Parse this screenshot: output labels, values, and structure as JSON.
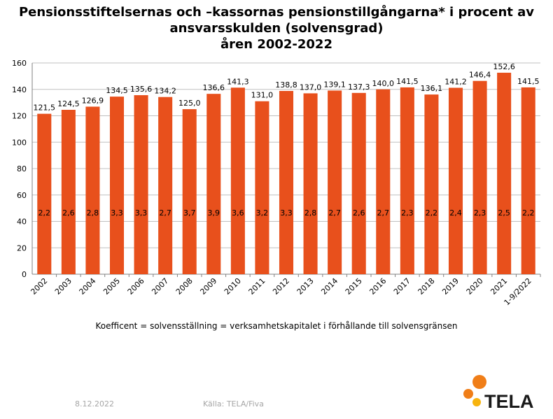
{
  "title_lines": [
    "Pensionsstiftelsernas och –kassornas pensionstillgångarna* i procent av",
    "ansvarsskulden (solvensgrad)",
    "åren 2002-2022"
  ],
  "note": "Koefficent = solvensställning = verksamhetskapitalet i förhållande till solvensgränsen",
  "footer": {
    "date": "8.12.2022",
    "source": "Källa: TELA/Fiva"
  },
  "logo_text": "TELA",
  "colors": {
    "bar": "#e8501c",
    "grid": "#c0c0c0",
    "axis": "#808080",
    "footer": "#a6a6a6",
    "logo_orange": "#f07e18",
    "logo_yellow": "#f7b40f"
  },
  "chart_data": {
    "type": "bar",
    "categories": [
      "2002",
      "2003",
      "2004",
      "2005",
      "2006",
      "2007",
      "2008",
      "2009",
      "2010",
      "2011",
      "2012",
      "2013",
      "2014",
      "2015",
      "2016",
      "2017",
      "2018",
      "2019",
      "2020",
      "2021",
      "1-9/2022"
    ],
    "values": [
      121.5,
      124.5,
      126.9,
      134.5,
      135.6,
      134.2,
      125.0,
      136.6,
      141.3,
      131.0,
      138.8,
      137.0,
      139.1,
      137.3,
      140.0,
      141.5,
      136.1,
      141.2,
      146.4,
      152.6,
      141.5
    ],
    "value_labels": [
      "121,5",
      "124,5",
      "126,9",
      "134,5",
      "135,6",
      "134,2",
      "125,0",
      "136,6",
      "141,3",
      "131,0",
      "138,8",
      "137,0",
      "139,1",
      "137,3",
      "140,0",
      "141,5",
      "136,1",
      "141,2",
      "146,4",
      "152,6",
      "141,5"
    ],
    "coefficient_labels": [
      "2,2",
      "2,6",
      "2,8",
      "3,3",
      "3,3",
      "2,7",
      "3,7",
      "3,9",
      "3,6",
      "3,2",
      "3,3",
      "2,8",
      "2,7",
      "2,6",
      "2,7",
      "2,3",
      "2,2",
      "2,4",
      "2,3",
      "2,5",
      "2,2"
    ],
    "ylim": [
      0,
      160
    ],
    "yticks": [
      0,
      20,
      40,
      60,
      80,
      100,
      120,
      140,
      160
    ],
    "grid": true
  }
}
